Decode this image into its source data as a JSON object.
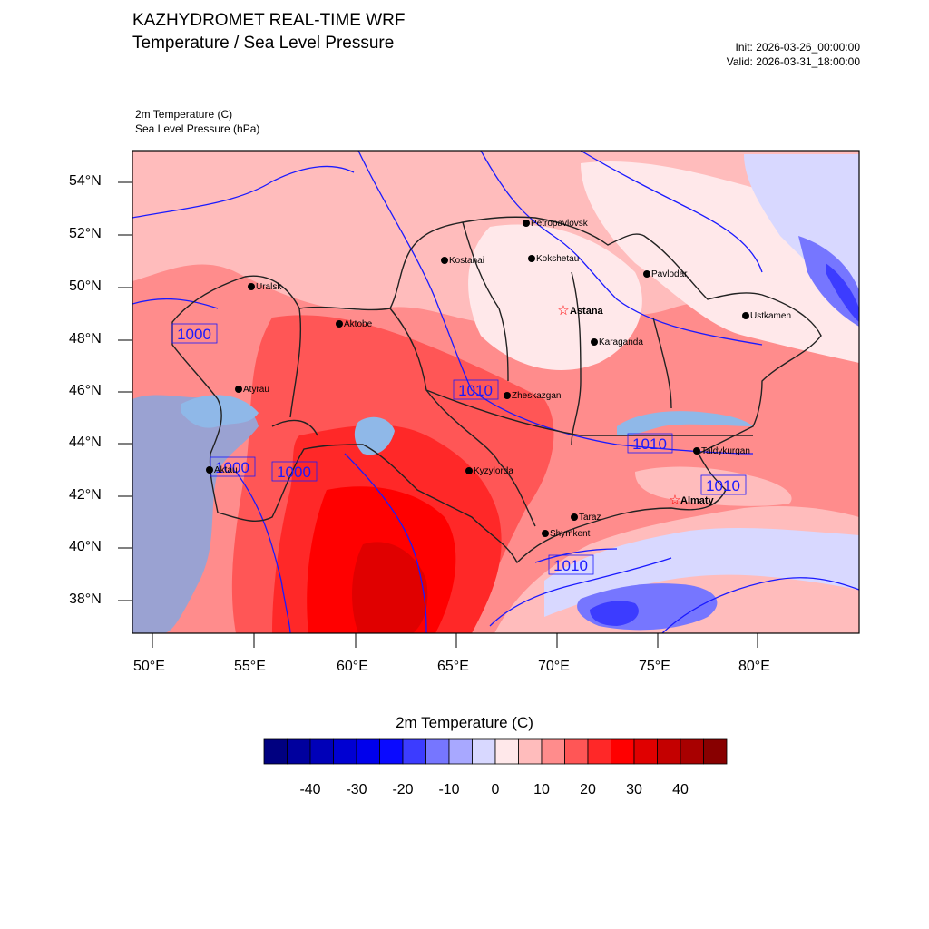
{
  "header": {
    "title": "KAZHYDROMET REAL-TIME WRF",
    "subtitle": "Temperature / Sea Level Pressure",
    "init": "Init: 2026-03-26_00:00:00",
    "valid": "Valid: 2026-03-31_18:00:00",
    "variable_1": "2m Temperature   (C)",
    "variable_2": "Sea Level Pressure   (hPa)"
  },
  "map": {
    "lat_ticks": [
      "54°N",
      "52°N",
      "50°N",
      "48°N",
      "46°N",
      "44°N",
      "42°N",
      "40°N",
      "38°N"
    ],
    "lon_ticks": [
      "50°E",
      "55°E",
      "60°E",
      "65°E",
      "70°E",
      "75°E",
      "80°E"
    ],
    "cities": [
      {
        "name": "Petropavlovsk",
        "bold": false,
        "capital": false
      },
      {
        "name": "Kostanai",
        "bold": false,
        "capital": false
      },
      {
        "name": "Kokshetau",
        "bold": false,
        "capital": false
      },
      {
        "name": "Pavlodar",
        "bold": false,
        "capital": false
      },
      {
        "name": "Uralsk",
        "bold": false,
        "capital": false
      },
      {
        "name": "Astana",
        "bold": true,
        "capital": true
      },
      {
        "name": "Ustkamen",
        "bold": false,
        "capital": false
      },
      {
        "name": "Aktobe",
        "bold": false,
        "capital": false
      },
      {
        "name": "Karaganda",
        "bold": false,
        "capital": false
      },
      {
        "name": "Atyrau",
        "bold": false,
        "capital": false
      },
      {
        "name": "Zheskazgan",
        "bold": false,
        "capital": false
      },
      {
        "name": "Taldykurgan",
        "bold": false,
        "capital": false
      },
      {
        "name": "Aktau",
        "bold": false,
        "capital": false
      },
      {
        "name": "Kyzylorda",
        "bold": false,
        "capital": false
      },
      {
        "name": "Almaty",
        "bold": true,
        "capital": true
      },
      {
        "name": "Taraz",
        "bold": false,
        "capital": false
      },
      {
        "name": "Shymkent",
        "bold": false,
        "capital": false
      }
    ],
    "isobar_labels": [
      "1000",
      "1010",
      "1010",
      "1000",
      "1000",
      "1010",
      "1010"
    ],
    "colors": {
      "isobar": "#1a1aff",
      "border": "#000000",
      "caspian": "#9aa2d2"
    }
  },
  "colorbar": {
    "title": "2m Temperature  (C)",
    "labels": [
      "-40",
      "-30",
      "-20",
      "-10",
      "0",
      "10",
      "20",
      "30",
      "40"
    ],
    "colors": [
      "#000080",
      "#00009e",
      "#0000b8",
      "#0000d2",
      "#0000ec",
      "#0a0aff",
      "#3c3cff",
      "#7676ff",
      "#a8a8ff",
      "#d8d8ff",
      "#ffe8ea",
      "#ffbcbc",
      "#ff8c8c",
      "#ff5656",
      "#ff2828",
      "#ff0000",
      "#e00000",
      "#c40000",
      "#a80000",
      "#880000"
    ]
  }
}
